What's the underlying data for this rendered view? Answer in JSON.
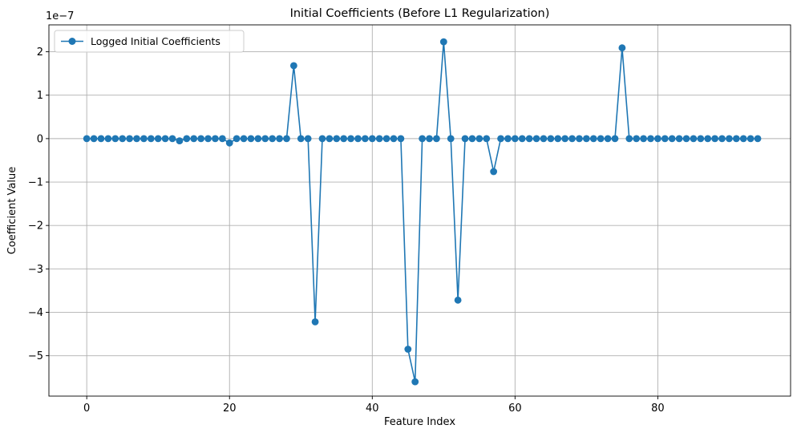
{
  "chart_data": {
    "type": "line",
    "title": "Initial Coefficients (Before L1 Regularization)",
    "xlabel": "Feature Index",
    "ylabel": "Coefficient Value",
    "y_scale_label": "1e−7",
    "xlim": [
      -5.3,
      98.6
    ],
    "ylim": [
      -5.93,
      2.62
    ],
    "x_ticks": [
      0,
      20,
      40,
      60,
      80
    ],
    "x_tick_labels": [
      "0",
      "20",
      "40",
      "60",
      "80"
    ],
    "y_ticks": [
      2,
      1,
      0,
      -1,
      -2,
      -3,
      -4,
      -5
    ],
    "y_tick_labels": [
      "2",
      "1",
      "0",
      "−1",
      "−2",
      "−3",
      "−4",
      "−5"
    ],
    "grid": true,
    "legend_position": "top-left",
    "color": "#1f77b4",
    "series": [
      {
        "name": "Logged Initial Coefficients",
        "x": [
          0,
          1,
          2,
          3,
          4,
          5,
          6,
          7,
          8,
          9,
          10,
          11,
          12,
          13,
          14,
          15,
          16,
          17,
          18,
          19,
          20,
          21,
          22,
          23,
          24,
          25,
          26,
          27,
          28,
          29,
          30,
          31,
          32,
          33,
          34,
          35,
          36,
          37,
          38,
          39,
          40,
          41,
          42,
          43,
          44,
          45,
          46,
          47,
          48,
          49,
          50,
          51,
          52,
          53,
          54,
          55,
          56,
          57,
          58,
          59,
          60,
          61,
          62,
          63,
          64,
          65,
          66,
          67,
          68,
          69,
          70,
          71,
          72,
          73,
          74,
          75,
          76,
          77,
          78,
          79,
          80,
          81,
          82,
          83,
          84,
          85,
          86,
          87,
          88,
          89,
          90,
          91,
          92,
          93,
          94
        ],
        "values": [
          0,
          0,
          0,
          0,
          0,
          0,
          0,
          0,
          0,
          0,
          0,
          0,
          0,
          -0.05,
          0,
          0,
          0,
          0,
          0,
          0,
          -0.1,
          0,
          0,
          0,
          0,
          0,
          0,
          0,
          0,
          1.68,
          0,
          0,
          -4.22,
          0,
          0,
          0,
          0,
          0,
          0,
          0,
          0,
          0,
          0,
          0,
          0,
          -4.85,
          -5.6,
          0,
          0,
          0,
          2.23,
          0,
          -3.72,
          0,
          0,
          0,
          0,
          -0.76,
          0,
          0,
          0,
          0,
          0,
          0,
          0,
          0,
          0,
          0,
          0,
          0,
          0,
          0,
          0,
          0,
          0,
          2.09,
          0,
          0,
          0,
          0,
          0,
          0,
          0,
          0,
          0,
          0,
          0,
          0,
          0,
          0,
          0,
          0,
          0,
          0,
          0
        ]
      }
    ]
  }
}
